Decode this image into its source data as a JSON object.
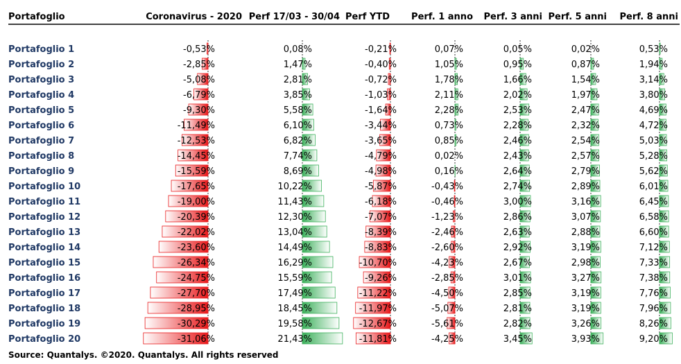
{
  "chart_data": {
    "type": "table",
    "header": {
      "row_label": "Portafoglio",
      "columns": [
        "Coronavirus - 2020",
        "Perf 17/03 - 30/04",
        "Perf YTD",
        "Perf. 1 anno",
        "Perf. 3 anni",
        "Perf. 5 anni",
        "Perf. 8 anni"
      ]
    },
    "rows": [
      {
        "label": "Portafoglio 1",
        "values": [
          -0.53,
          0.08,
          -0.21,
          0.07,
          0.05,
          0.02,
          0.53
        ]
      },
      {
        "label": "Portafoglio 2",
        "values": [
          -2.85,
          1.47,
          -0.4,
          1.05,
          0.95,
          0.87,
          1.94
        ]
      },
      {
        "label": "Portafoglio 3",
        "values": [
          -5.08,
          2.81,
          -0.72,
          1.78,
          1.66,
          1.54,
          3.14
        ]
      },
      {
        "label": "Portafoglio 4",
        "values": [
          -6.79,
          3.85,
          -1.03,
          2.11,
          2.02,
          1.97,
          3.8
        ]
      },
      {
        "label": "Portafoglio 5",
        "values": [
          -9.3,
          5.58,
          -1.64,
          2.28,
          2.53,
          2.47,
          4.69
        ]
      },
      {
        "label": "Portafoglio 6",
        "values": [
          -11.49,
          6.1,
          -3.44,
          0.73,
          2.28,
          2.32,
          4.72
        ]
      },
      {
        "label": "Portafoglio 7",
        "values": [
          -12.53,
          6.82,
          -3.65,
          0.85,
          2.46,
          2.54,
          5.03
        ]
      },
      {
        "label": "Portafoglio 8",
        "values": [
          -14.45,
          7.74,
          -4.79,
          0.02,
          2.43,
          2.57,
          5.28
        ]
      },
      {
        "label": "Portafoglio 9",
        "values": [
          -15.59,
          8.69,
          -4.98,
          0.16,
          2.64,
          2.79,
          5.62
        ]
      },
      {
        "label": "Portafoglio 10",
        "values": [
          -17.65,
          10.22,
          -5.87,
          -0.43,
          2.74,
          2.89,
          6.01
        ]
      },
      {
        "label": "Portafoglio 11",
        "values": [
          -19.0,
          11.43,
          -6.18,
          -0.46,
          3.0,
          3.16,
          6.45
        ]
      },
      {
        "label": "Portafoglio 12",
        "values": [
          -20.39,
          12.3,
          -7.07,
          -1.23,
          2.86,
          3.07,
          6.58
        ]
      },
      {
        "label": "Portafoglio 13",
        "values": [
          -22.02,
          13.04,
          -8.39,
          -2.46,
          2.63,
          2.88,
          6.6
        ]
      },
      {
        "label": "Portafoglio 14",
        "values": [
          -23.6,
          14.49,
          -8.83,
          -2.6,
          2.92,
          3.19,
          7.12
        ]
      },
      {
        "label": "Portafoglio 15",
        "values": [
          -26.34,
          16.29,
          -10.7,
          -4.23,
          2.67,
          2.98,
          7.33
        ]
      },
      {
        "label": "Portafoglio 16",
        "values": [
          -24.75,
          15.59,
          -9.26,
          -2.85,
          3.01,
          3.27,
          7.38
        ]
      },
      {
        "label": "Portafoglio 17",
        "values": [
          -27.7,
          17.49,
          -11.22,
          -4.5,
          2.85,
          3.19,
          7.76
        ]
      },
      {
        "label": "Portafoglio 18",
        "values": [
          -28.95,
          18.45,
          -11.97,
          -5.07,
          2.81,
          3.19,
          7.96
        ]
      },
      {
        "label": "Portafoglio 19",
        "values": [
          -30.29,
          19.58,
          -12.67,
          -5.61,
          2.82,
          3.26,
          8.26
        ]
      },
      {
        "label": "Portafoglio 20",
        "values": [
          -31.06,
          21.43,
          -11.81,
          -4.25,
          3.45,
          3.93,
          9.2
        ]
      }
    ],
    "formatted": [
      [
        "-0,53%",
        "0,08%",
        "-0,21%",
        "0,07%",
        "0,05%",
        "0,02%",
        "0,53%"
      ],
      [
        "-2,85%",
        "1,47%",
        "-0,40%",
        "1,05%",
        "0,95%",
        "0,87%",
        "1,94%"
      ],
      [
        "-5,08%",
        "2,81%",
        "-0,72%",
        "1,78%",
        "1,66%",
        "1,54%",
        "3,14%"
      ],
      [
        "-6,79%",
        "3,85%",
        "-1,03%",
        "2,11%",
        "2,02%",
        "1,97%",
        "3,80%"
      ],
      [
        "-9,30%",
        "5,58%",
        "-1,64%",
        "2,28%",
        "2,53%",
        "2,47%",
        "4,69%"
      ],
      [
        "-11,49%",
        "6,10%",
        "-3,44%",
        "0,73%",
        "2,28%",
        "2,32%",
        "4,72%"
      ],
      [
        "-12,53%",
        "6,82%",
        "-3,65%",
        "0,85%",
        "2,46%",
        "2,54%",
        "5,03%"
      ],
      [
        "-14,45%",
        "7,74%",
        "-4,79%",
        "0,02%",
        "2,43%",
        "2,57%",
        "5,28%"
      ],
      [
        "-15,59%",
        "8,69%",
        "-4,98%",
        "0,16%",
        "2,64%",
        "2,79%",
        "5,62%"
      ],
      [
        "-17,65%",
        "10,22%",
        "-5,87%",
        "-0,43%",
        "2,74%",
        "2,89%",
        "6,01%"
      ],
      [
        "-19,00%",
        "11,43%",
        "-6,18%",
        "-0,46%",
        "3,00%",
        "3,16%",
        "6,45%"
      ],
      [
        "-20,39%",
        "12,30%",
        "-7,07%",
        "-1,23%",
        "2,86%",
        "3,07%",
        "6,58%"
      ],
      [
        "-22,02%",
        "13,04%",
        "-8,39%",
        "-2,46%",
        "2,63%",
        "2,88%",
        "6,60%"
      ],
      [
        "-23,60%",
        "14,49%",
        "-8,83%",
        "-2,60%",
        "2,92%",
        "3,19%",
        "7,12%"
      ],
      [
        "-26,34%",
        "16,29%",
        "-10,70%",
        "-4,23%",
        "2,67%",
        "2,98%",
        "7,33%"
      ],
      [
        "-24,75%",
        "15,59%",
        "-9,26%",
        "-2,85%",
        "3,01%",
        "3,27%",
        "7,38%"
      ],
      [
        "-27,70%",
        "17,49%",
        "-11,22%",
        "-4,50%",
        "2,85%",
        "3,19%",
        "7,76%"
      ],
      [
        "-28,95%",
        "18,45%",
        "-11,97%",
        "-5,07%",
        "2,81%",
        "3,19%",
        "7,96%"
      ],
      [
        "-30,29%",
        "19,58%",
        "-12,67%",
        "-5,61%",
        "2,82%",
        "3,26%",
        "8,26%"
      ],
      [
        "-31,06%",
        "21,43%",
        "-11,81%",
        "-4,25%",
        "3,45%",
        "3,93%",
        "9,20%"
      ]
    ],
    "colors": {
      "negative": "#e8191b",
      "positive": "#3cb05b",
      "row_label": "#1f3864"
    },
    "grid": false,
    "legend": "none"
  },
  "footer": {
    "source": "Source: Quantalys. ©2020. Quantalys. All rights reserved"
  }
}
